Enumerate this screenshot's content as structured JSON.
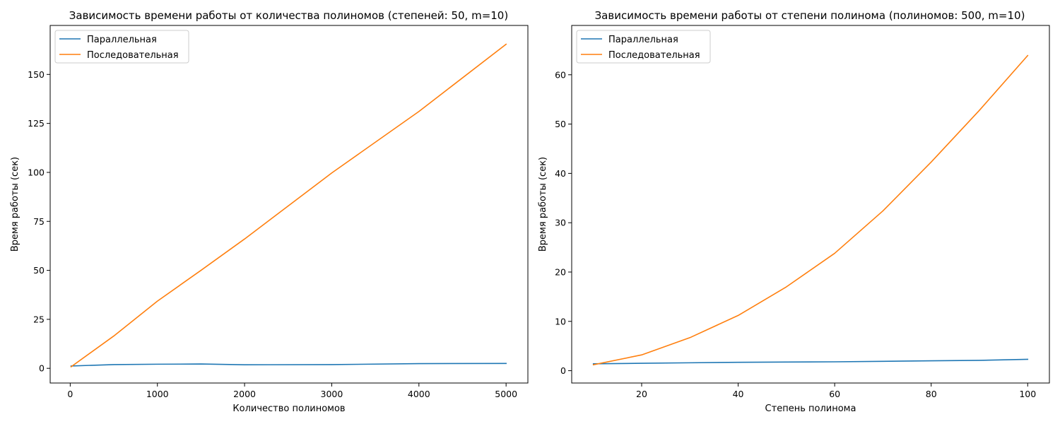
{
  "chart_data": [
    {
      "type": "line",
      "title": "Зависимость времени работы от количества полиномов (степеней: 50, m=10)",
      "xlabel": "Количество полиномов",
      "ylabel": "Время работы (сек)",
      "xlim": [
        -230,
        5250
      ],
      "ylim": [
        -7.5,
        175
      ],
      "xticks": [
        0,
        1000,
        2000,
        3000,
        4000,
        5000
      ],
      "yticks": [
        0,
        25,
        50,
        75,
        100,
        125,
        150
      ],
      "legend": "top-left",
      "grid": false,
      "series": [
        {
          "name": "Параллельная",
          "color": "#1f77b4",
          "x": [
            10,
            500,
            1000,
            1500,
            2000,
            3000,
            4000,
            5000
          ],
          "values": [
            1.2,
            1.9,
            2.1,
            2.2,
            1.8,
            1.9,
            2.4,
            2.5
          ]
        },
        {
          "name": "Последовательная",
          "color": "#ff7f0e",
          "x": [
            10,
            500,
            1000,
            1500,
            2000,
            3000,
            4000,
            5000
          ],
          "values": [
            0.8,
            16.5,
            34.3,
            50.0,
            66.0,
            99.7,
            131.1,
            165.4
          ]
        }
      ]
    },
    {
      "type": "line",
      "title": "Зависимость времени работы от степени полинома (полиномов: 500, m=10)",
      "xlabel": "Степень полинома",
      "ylabel": "Время работы (сек)",
      "xlim": [
        5.5,
        104.5
      ],
      "ylim": [
        -2.5,
        70
      ],
      "xticks": [
        20,
        40,
        60,
        80,
        100
      ],
      "yticks": [
        0,
        10,
        20,
        30,
        40,
        50,
        60
      ],
      "legend": "top-left",
      "grid": false,
      "series": [
        {
          "name": "Параллельная",
          "color": "#1f77b4",
          "x": [
            10,
            20,
            30,
            40,
            50,
            60,
            70,
            80,
            90,
            100
          ],
          "values": [
            1.4,
            1.5,
            1.6,
            1.7,
            1.75,
            1.8,
            1.9,
            2.0,
            2.1,
            2.3
          ]
        },
        {
          "name": "Последовательная",
          "color": "#ff7f0e",
          "x": [
            10,
            20,
            30,
            40,
            50,
            60,
            70,
            80,
            90,
            100
          ],
          "values": [
            1.2,
            3.2,
            6.7,
            11.2,
            17.0,
            23.8,
            32.4,
            42.3,
            52.8,
            63.9
          ]
        }
      ]
    }
  ]
}
